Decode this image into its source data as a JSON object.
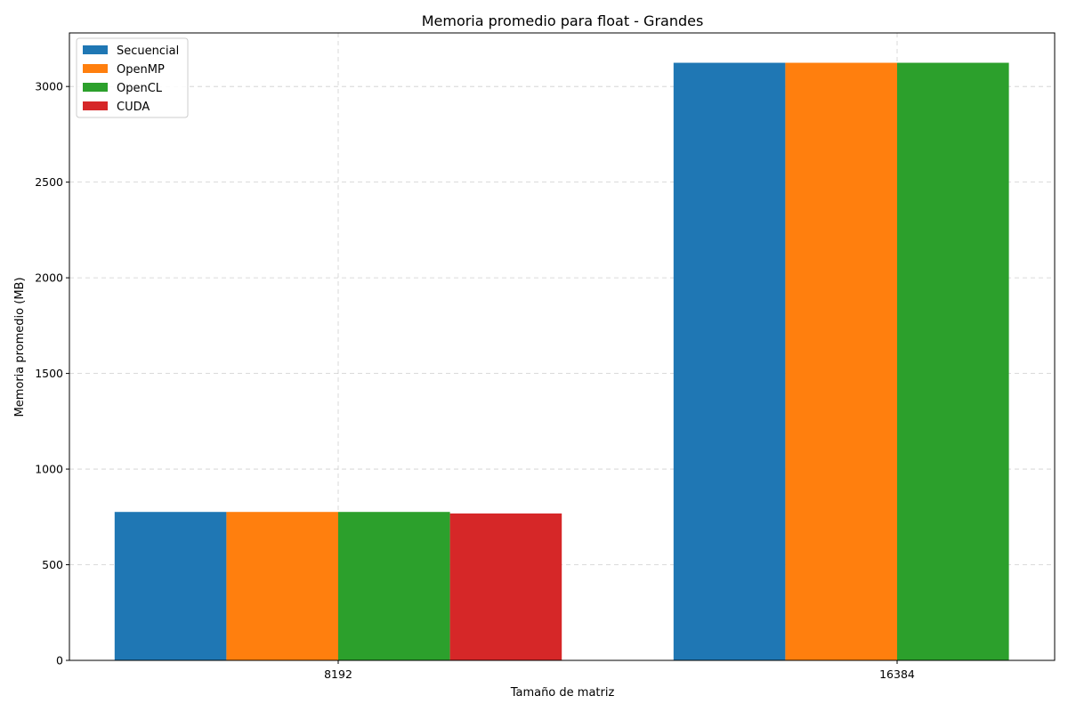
{
  "chart_data": {
    "type": "bar",
    "title": "Memoria promedio para float - Grandes",
    "xlabel": "Tamaño de matriz",
    "ylabel": "Memoria promedio (MB)",
    "categories": [
      "8192",
      "16384"
    ],
    "ylim": [
      0,
      3280
    ],
    "yticks": [
      0,
      500,
      1000,
      1500,
      2000,
      2500,
      3000
    ],
    "grid": true,
    "legend_position": "top-left",
    "series": [
      {
        "name": "Secuencial",
        "color": "#1f77b4",
        "values": [
          776,
          3124
        ]
      },
      {
        "name": "OpenMP",
        "color": "#ff7f0e",
        "values": [
          776,
          3124
        ]
      },
      {
        "name": "OpenCL",
        "color": "#2ca02c",
        "values": [
          776,
          3124
        ]
      },
      {
        "name": "CUDA",
        "color": "#d62728",
        "values": [
          768,
          null
        ]
      }
    ]
  }
}
